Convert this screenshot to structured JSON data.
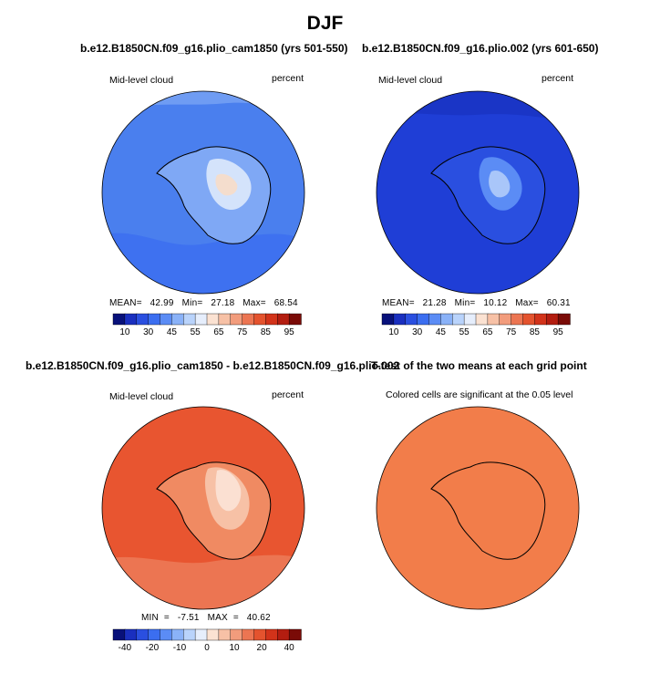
{
  "figure": {
    "title": "DJF"
  },
  "panels": [
    {
      "id": "top-left",
      "title": "b.e12.B1850CN.f09_g16.plio_cam1850 (yrs 501-550)",
      "variable": "Mid-level cloud",
      "units": "percent",
      "stats": "MEAN=   42.99   Min=   27.18   Max=   68.54",
      "colorbar": {
        "labels": [
          "10",
          "30",
          "45",
          "55",
          "65",
          "75",
          "85",
          "95"
        ]
      }
    },
    {
      "id": "top-right",
      "title": "b.e12.B1850CN.f09_g16.plio.002 (yrs 601-650)",
      "variable": "Mid-level cloud",
      "units": "percent",
      "stats": "MEAN=   21.28   Min=   10.12   Max=   60.31",
      "colorbar": {
        "labels": [
          "10",
          "30",
          "45",
          "55",
          "65",
          "75",
          "85",
          "95"
        ]
      }
    },
    {
      "id": "bottom-left",
      "title": "b.e12.B1850CN.f09_g16.plio_cam1850 - b.e12.B1850CN.f09_g16.plio.002",
      "variable": "Mid-level cloud",
      "units": "percent",
      "stats": "MIN  =   -7.51   MAX  =   40.62",
      "colorbar": {
        "labels": [
          "-40",
          "-20",
          "-10",
          "0",
          "10",
          "20",
          "40"
        ]
      }
    },
    {
      "id": "bottom-right",
      "title": "T-test of the two means at each grid point",
      "subtitle": "Colored cells are significant at the 0.05 level"
    }
  ],
  "colors": {
    "scale": [
      "#08117a",
      "#1a2fbf",
      "#2a4fe0",
      "#3b6ef0",
      "#5b8cf5",
      "#8ab2f8",
      "#b9d3fb",
      "#e6eefc",
      "#fbe2d2",
      "#f7c1a6",
      "#f29c7c",
      "#ec7552",
      "#e4532e",
      "#d2331a",
      "#b31d10",
      "#7a0b07"
    ],
    "top_left_ocean": "#4a7fee",
    "top_left_land": "#7fa8f5",
    "top_left_plateau": "#f4ddcd",
    "top_right_ocean": "#1f3ed6",
    "top_right_land": "#3f6ee8",
    "top_right_plateau": "#a9c6f9",
    "diff_ocean": "#e85530",
    "diff_land": "#f08a62",
    "diff_plateau": "#fbe0d2",
    "ttest_fill": "#f27d4a"
  }
}
